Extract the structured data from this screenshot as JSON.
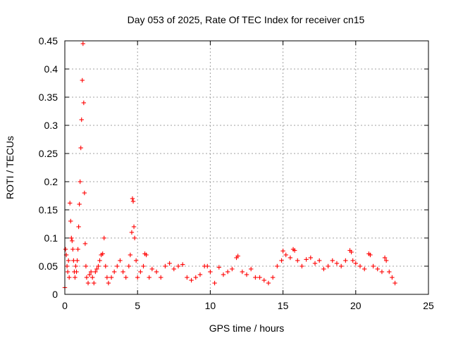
{
  "chart_data": {
    "type": "scatter",
    "title": "Day 053 of 2025, Rate Of TEC Index for receiver cn15",
    "xlabel": "GPS time / hours",
    "ylabel": "ROTI / TECUs",
    "xlim": [
      0,
      25
    ],
    "ylim": [
      0,
      0.45
    ],
    "xticks": [
      0,
      5,
      10,
      15,
      20,
      25
    ],
    "yticks": [
      0,
      0.05,
      0.1,
      0.15,
      0.2,
      0.25,
      0.3,
      0.35,
      0.4,
      0.45
    ],
    "ytick_labels": [
      "0",
      "0.05",
      "0.1",
      "0.15",
      "0.2",
      "0.25",
      "0.3",
      "0.35",
      "0.4",
      "0.45"
    ],
    "grid": true,
    "marker": "+",
    "color": "#ff0000",
    "series": [
      {
        "x": [
          0.0,
          0.05,
          0.1,
          0.15,
          0.2,
          0.25,
          0.3,
          0.35,
          0.4,
          0.45,
          0.5,
          0.55,
          0.6,
          0.65,
          0.7,
          0.75,
          0.8,
          0.85,
          0.9,
          0.95,
          1.0,
          1.05,
          1.1,
          1.15,
          1.2,
          1.25,
          1.3,
          1.35,
          1.4,
          1.45,
          1.5,
          1.6,
          1.7,
          1.8,
          1.9,
          2.0,
          2.1,
          2.2,
          2.3,
          2.4,
          2.5,
          2.6,
          2.7,
          2.8,
          2.9,
          3.0,
          3.2,
          3.4,
          3.6,
          3.8,
          4.0,
          4.2,
          4.4,
          4.5,
          4.6,
          4.65,
          4.7,
          4.75,
          4.8,
          4.9,
          5.0,
          5.2,
          5.4,
          5.5,
          5.6,
          5.8,
          6.0,
          6.3,
          6.6,
          6.9,
          7.2,
          7.5,
          7.8,
          8.1,
          8.4,
          8.7,
          9.0,
          9.3,
          9.6,
          9.8,
          10.0,
          10.3,
          10.6,
          10.9,
          11.2,
          11.5,
          11.8,
          11.9,
          12.2,
          12.5,
          12.8,
          13.1,
          13.4,
          13.7,
          14.0,
          14.3,
          14.6,
          14.9,
          15.0,
          15.2,
          15.5,
          15.7,
          15.8,
          16.0,
          16.3,
          16.6,
          16.9,
          17.2,
          17.5,
          17.8,
          18.1,
          18.4,
          18.7,
          19.0,
          19.3,
          19.6,
          19.7,
          19.8,
          20.0,
          20.3,
          20.6,
          20.9,
          21.0,
          21.2,
          21.5,
          21.8,
          22.0,
          22.1,
          22.3,
          22.5,
          22.7
        ],
        "y": [
          0.012,
          0.08,
          0.07,
          0.05,
          0.04,
          0.06,
          0.03,
          0.162,
          0.13,
          0.1,
          0.095,
          0.08,
          0.06,
          0.04,
          0.03,
          0.05,
          0.04,
          0.06,
          0.08,
          0.12,
          0.16,
          0.2,
          0.26,
          0.31,
          0.38,
          0.445,
          0.34,
          0.18,
          0.09,
          0.05,
          0.03,
          0.02,
          0.035,
          0.04,
          0.03,
          0.02,
          0.04,
          0.045,
          0.05,
          0.06,
          0.07,
          0.072,
          0.1,
          0.05,
          0.03,
          0.02,
          0.03,
          0.04,
          0.05,
          0.06,
          0.04,
          0.03,
          0.05,
          0.07,
          0.11,
          0.17,
          0.165,
          0.12,
          0.1,
          0.06,
          0.03,
          0.04,
          0.05,
          0.072,
          0.07,
          0.03,
          0.045,
          0.04,
          0.03,
          0.05,
          0.055,
          0.045,
          0.05,
          0.053,
          0.03,
          0.025,
          0.03,
          0.035,
          0.05,
          0.05,
          0.04,
          0.02,
          0.048,
          0.035,
          0.04,
          0.045,
          0.065,
          0.068,
          0.04,
          0.035,
          0.045,
          0.03,
          0.03,
          0.025,
          0.02,
          0.03,
          0.05,
          0.06,
          0.077,
          0.07,
          0.065,
          0.08,
          0.078,
          0.06,
          0.05,
          0.062,
          0.065,
          0.055,
          0.06,
          0.045,
          0.05,
          0.06,
          0.055,
          0.05,
          0.06,
          0.078,
          0.075,
          0.06,
          0.055,
          0.05,
          0.045,
          0.072,
          0.07,
          0.05,
          0.045,
          0.04,
          0.065,
          0.06,
          0.04,
          0.03,
          0.02
        ]
      }
    ]
  }
}
